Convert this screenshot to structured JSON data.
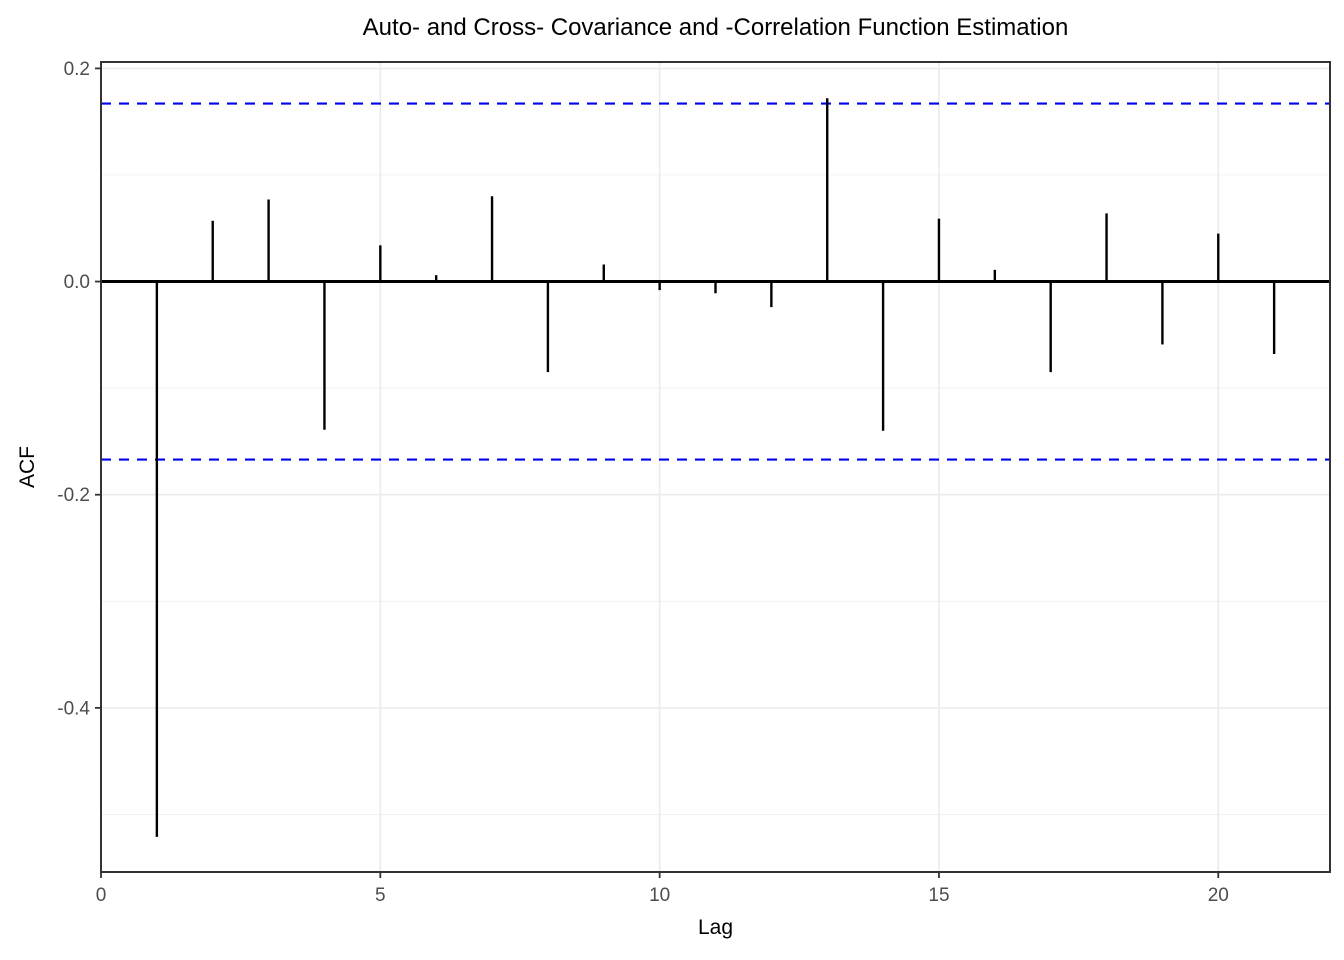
{
  "chart_data": {
    "type": "bar",
    "subtype": "acf-spike-plot",
    "title": "Auto- and Cross- Covariance and -Correlation Function Estimation",
    "xlabel": "Lag",
    "ylabel": "ACF",
    "x": [
      1,
      2,
      3,
      4,
      5,
      6,
      7,
      8,
      9,
      10,
      11,
      12,
      13,
      14,
      15,
      16,
      17,
      18,
      19,
      20,
      21
    ],
    "values": [
      -0.521,
      0.057,
      0.077,
      -0.139,
      0.034,
      0.006,
      0.08,
      -0.085,
      0.016,
      -0.008,
      -0.011,
      -0.024,
      0.172,
      -0.14,
      0.059,
      0.011,
      -0.085,
      0.064,
      -0.059,
      0.045,
      -0.068
    ],
    "confidence_upper": 0.167,
    "confidence_lower": -0.167,
    "xlim": [
      0,
      22
    ],
    "ylim": [
      -0.554,
      0.206
    ],
    "x_ticks": [
      0,
      5,
      10,
      15,
      20
    ],
    "x_tick_labels": [
      "0",
      "5",
      "10",
      "15",
      "20"
    ],
    "y_ticks": [
      0.2,
      0.0,
      -0.2,
      -0.4
    ],
    "y_tick_labels": [
      "0.2",
      "0.0",
      "-0.2",
      "-0.4"
    ],
    "y_minor_gridlines": [
      0.1,
      -0.1,
      -0.3,
      -0.5
    ],
    "grid": true,
    "legend": "none",
    "colors": {
      "spike": "#000000",
      "zero_line": "#000000",
      "conf_line": "#0000EE",
      "grid_major": "#EBEBEB",
      "grid_minor": "#F0F0F0",
      "panel_border": "#333333",
      "tick_mark": "#333333",
      "tick_label": "#4D4D4D",
      "title_color": "#000000",
      "panel_bg": "#FFFFFF"
    }
  }
}
